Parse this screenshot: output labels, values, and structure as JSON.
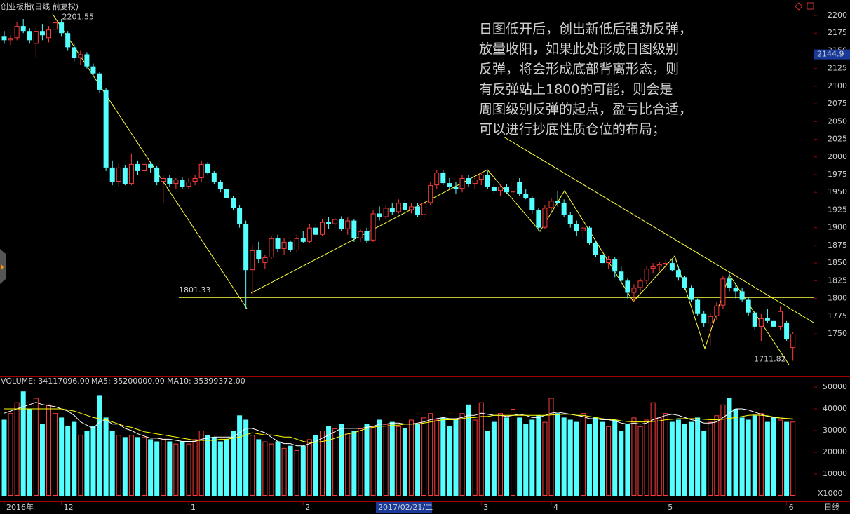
{
  "chart_data": [
    {
      "type": "candlestick",
      "title": "创业板指(日线 前复权)",
      "categories": [
        "2016年",
        null,
        null,
        null,
        null,
        null,
        null,
        null,
        null,
        "12",
        null,
        null,
        null,
        null,
        null,
        null,
        null,
        null,
        null,
        null,
        null,
        null,
        null,
        null,
        null,
        null,
        null,
        null,
        null,
        "1",
        null,
        null,
        null,
        null,
        null,
        null,
        null,
        null,
        null,
        null,
        null,
        null,
        null,
        null,
        null,
        null,
        null,
        "2",
        null,
        null,
        null,
        null,
        null,
        null,
        null,
        null,
        null,
        null,
        null,
        null,
        null,
        null,
        null,
        null,
        null,
        null,
        null,
        null,
        null,
        null,
        null,
        null,
        null,
        null,
        null,
        "3",
        null,
        null,
        null,
        null,
        null,
        null,
        null,
        null,
        null,
        null,
        "4",
        null,
        null,
        null,
        null,
        null,
        null,
        null,
        null,
        null,
        null,
        null,
        null,
        null,
        null,
        null,
        null,
        null,
        "5",
        null,
        null,
        null,
        null,
        null,
        null,
        null,
        null,
        null,
        null,
        null,
        null,
        null,
        null,
        null,
        null,
        null,
        null,
        "6",
        null
      ],
      "cursor_label": "2017/02/21/二",
      "open": [
        2170,
        2165,
        2168,
        2185,
        2178,
        2160,
        2178,
        2168,
        2180,
        2190,
        2175,
        2155,
        2140,
        2145,
        2128,
        2118,
        2095,
        1985,
        1965,
        1985,
        1962,
        1990,
        1980,
        1990,
        1985,
        1965,
        1970,
        1962,
        1968,
        1958,
        1965,
        1970,
        1990,
        1978,
        1965,
        1955,
        1942,
        1928,
        1905,
        1840,
        1868,
        1850,
        1858,
        1885,
        1870,
        1880,
        1868,
        1885,
        1880,
        1900,
        1890,
        1908,
        1905,
        1912,
        1898,
        1910,
        1885,
        1895,
        1882,
        1920,
        1915,
        1928,
        1922,
        1935,
        1925,
        1930,
        1918,
        1935,
        1960,
        1978,
        1963,
        1958,
        1955,
        1970,
        1962,
        1968,
        1975,
        1958,
        1952,
        1958,
        1950,
        1965,
        1948,
        1942,
        1925,
        1900,
        1928,
        1938,
        1935,
        1918,
        1905,
        1895,
        1900,
        1878,
        1862,
        1850,
        1855,
        1838,
        1825,
        1808,
        1815,
        1825,
        1842,
        1845,
        1848,
        1850,
        1840,
        1830,
        1815,
        1798,
        1778,
        1765,
        1775,
        1790,
        1828,
        1815,
        1810,
        1798,
        1780,
        1760,
        1772,
        1768,
        1760,
        1765,
        1730
      ],
      "high": [
        2178,
        2172,
        2190,
        2195,
        2182,
        2185,
        2188,
        2185,
        2201.55,
        2195,
        2178,
        2160,
        2150,
        2148,
        2132,
        2120,
        2098,
        1995,
        1990,
        1988,
        2005,
        1995,
        1992,
        1993,
        1987,
        1975,
        1975,
        1970,
        1972,
        1970,
        1975,
        1995,
        1993,
        1980,
        1968,
        1958,
        1945,
        1932,
        1910,
        1875,
        1880,
        1862,
        1888,
        1890,
        1885,
        1882,
        1890,
        1895,
        1905,
        1905,
        1912,
        1915,
        1915,
        1916,
        1915,
        1912,
        1898,
        1900,
        1925,
        1930,
        1932,
        1935,
        1940,
        1940,
        1935,
        1935,
        1940,
        1965,
        1982,
        1982,
        1970,
        1965,
        1975,
        1975,
        1972,
        1978,
        1980,
        1962,
        1962,
        1962,
        1970,
        1970,
        1955,
        1945,
        1928,
        1932,
        1942,
        1952,
        1940,
        1922,
        1910,
        1905,
        1902,
        1882,
        1865,
        1860,
        1858,
        1845,
        1828,
        1820,
        1828,
        1845,
        1850,
        1852,
        1855,
        1855,
        1845,
        1832,
        1818,
        1800,
        1782,
        1780,
        1795,
        1832,
        1835,
        1822,
        1815,
        1802,
        1782,
        1778,
        1785,
        1772,
        1788,
        1768,
        1752
      ],
      "low": [
        2160,
        2158,
        2165,
        2175,
        2160,
        2140,
        2165,
        2162,
        2175,
        2170,
        2150,
        2135,
        2130,
        2125,
        2115,
        2090,
        1980,
        1960,
        1958,
        1960,
        1960,
        1975,
        1975,
        1978,
        1960,
        1935,
        1958,
        1955,
        1955,
        1955,
        1960,
        1965,
        1975,
        1962,
        1950,
        1940,
        1925,
        1900,
        1785,
        1805,
        1850,
        1842,
        1855,
        1865,
        1862,
        1865,
        1865,
        1878,
        1878,
        1885,
        1888,
        1898,
        1900,
        1895,
        1890,
        1880,
        1880,
        1878,
        1880,
        1910,
        1912,
        1918,
        1920,
        1922,
        1920,
        1915,
        1912,
        1932,
        1955,
        1960,
        1955,
        1948,
        1950,
        1958,
        1955,
        1960,
        1955,
        1948,
        1945,
        1948,
        1945,
        1945,
        1940,
        1920,
        1895,
        1898,
        1922,
        1930,
        1915,
        1900,
        1888,
        1885,
        1875,
        1858,
        1845,
        1842,
        1830,
        1820,
        1800,
        1795,
        1810,
        1820,
        1835,
        1838,
        1840,
        1838,
        1825,
        1812,
        1795,
        1775,
        1760,
        1733,
        1770,
        1785,
        1810,
        1800,
        1795,
        1775,
        1755,
        1740,
        1765,
        1755,
        1755,
        1740,
        1711.82
      ],
      "close": [
        2165,
        2168,
        2185,
        2178,
        2165,
        2178,
        2172,
        2180,
        2190,
        2175,
        2155,
        2140,
        2145,
        2128,
        2118,
        2095,
        1985,
        1965,
        1985,
        1962,
        1990,
        1980,
        1990,
        1985,
        1965,
        1970,
        1962,
        1968,
        1958,
        1965,
        1970,
        1990,
        1978,
        1965,
        1955,
        1942,
        1928,
        1905,
        1840,
        1868,
        1855,
        1858,
        1885,
        1870,
        1880,
        1868,
        1885,
        1880,
        1900,
        1890,
        1908,
        1905,
        1912,
        1898,
        1910,
        1885,
        1895,
        1882,
        1920,
        1915,
        1928,
        1922,
        1935,
        1925,
        1930,
        1918,
        1935,
        1960,
        1978,
        1963,
        1958,
        1955,
        1970,
        1962,
        1968,
        1975,
        1958,
        1952,
        1958,
        1950,
        1965,
        1948,
        1942,
        1925,
        1900,
        1928,
        1938,
        1935,
        1918,
        1905,
        1895,
        1900,
        1878,
        1862,
        1850,
        1855,
        1838,
        1825,
        1808,
        1815,
        1825,
        1842,
        1845,
        1848,
        1850,
        1840,
        1830,
        1815,
        1798,
        1778,
        1765,
        1775,
        1790,
        1828,
        1815,
        1810,
        1798,
        1780,
        1760,
        1772,
        1768,
        1760,
        1782,
        1742,
        1750
      ],
      "up_color": "#ff3c3c",
      "down_color": "#54ffff",
      "ylim": [
        1691.5,
        2221.8
      ],
      "yticks": [
        1750,
        1775,
        1800,
        1825,
        1850,
        1875,
        1900,
        1925,
        1950,
        1975,
        2000,
        2025,
        2050,
        2075,
        2100,
        2125,
        2150,
        2175,
        2200
      ],
      "price_marker": 2144.9,
      "high_label": 2201.55,
      "low_label": 1711.82,
      "hline": 1801.33,
      "annotation": [
        "日图低开后，创出新低后强劲反弹，",
        "放量收阳，如果此处形成日图级别",
        "反弹，将会形成底部背离形态，则",
        "有反弹站上1800的可能，则会是",
        "周图级别反弹的起点，盈亏比合适，",
        "可以进行抄底性质仓位的布局；"
      ],
      "period_label": "日线"
    },
    {
      "type": "volume",
      "header": [
        "VOLUME: 34117096.00",
        "MA5: 35200000.00",
        "MA10: 35399372.00"
      ],
      "volume": [
        35000,
        38000,
        43000,
        48000,
        40000,
        45000,
        33000,
        42000,
        38000,
        36000,
        32000,
        34000,
        28000,
        30000,
        32000,
        46000,
        36000,
        30000,
        28000,
        27000,
        28000,
        27000,
        27000,
        26000,
        25000,
        26000,
        25000,
        24000,
        25000,
        24000,
        26000,
        30000,
        28000,
        27000,
        25000,
        26000,
        30000,
        37000,
        35000,
        28000,
        26000,
        25000,
        24000,
        25000,
        22000,
        23000,
        21000,
        23000,
        26000,
        28000,
        30000,
        32000,
        31000,
        33000,
        29000,
        30000,
        31000,
        33000,
        32000,
        35000,
        33000,
        34000,
        32000,
        31000,
        35000,
        33000,
        36000,
        38000,
        35000,
        36000,
        32000,
        35000,
        38000,
        42000,
        35000,
        43000,
        30000,
        34000,
        38000,
        36000,
        40000,
        36000,
        33000,
        35000,
        37000,
        34000,
        45000,
        38000,
        36000,
        35000,
        34000,
        38000,
        33000,
        36000,
        34000,
        32000,
        35000,
        30000,
        33000,
        36000,
        32000,
        35000,
        43000,
        36000,
        38000,
        34000,
        35000,
        33000,
        34000,
        36000,
        30000,
        34000,
        37000,
        42000,
        45000,
        40000,
        36000,
        35000,
        37000,
        38000,
        34000,
        36000,
        35000,
        34000,
        34117.096
      ],
      "ma5": [
        38000,
        39000,
        40000,
        41000,
        42000,
        43000,
        42000,
        41500,
        41000,
        40000,
        39000,
        37000,
        34000,
        32500,
        31000,
        34000,
        35000,
        33000,
        33000,
        31000,
        30000,
        28500,
        27500,
        26500,
        26500,
        26000,
        26000,
        25500,
        25000,
        25000,
        25000,
        26000,
        26500,
        27000,
        27000,
        27000,
        27000,
        29000,
        31000,
        31000,
        30000,
        29000,
        27000,
        25000,
        24000,
        24000,
        23000,
        23000,
        24000,
        25000,
        26500,
        28000,
        29500,
        31000,
        31000,
        31000,
        31000,
        31500,
        32000,
        33000,
        33000,
        33500,
        33500,
        33000,
        33000,
        33500,
        34000,
        35000,
        35500,
        36000,
        35500,
        35500,
        36000,
        37000,
        37000,
        38000,
        37500,
        37000,
        37000,
        36500,
        37000,
        37500,
        37000,
        36000,
        36000,
        37000,
        38000,
        38500,
        38000,
        37500,
        37000,
        36500,
        35500,
        35500,
        35000,
        35000,
        34500,
        33500,
        33000,
        33500,
        33000,
        33500,
        35000,
        36000,
        37000,
        37500,
        37000,
        36000,
        35000,
        34500,
        33500,
        33500,
        34000,
        36000,
        38000,
        40000,
        40000,
        39500,
        38500,
        37500,
        36500,
        36000,
        35800,
        35500,
        35200
      ],
      "ma10": [
        40000,
        40000,
        40000,
        40000,
        40000,
        40000,
        40000,
        40000,
        40000,
        40000,
        39500,
        39000,
        38000,
        37000,
        36000,
        35500,
        35000,
        34000,
        33000,
        32000,
        31500,
        30500,
        29500,
        29000,
        28500,
        28000,
        27500,
        27000,
        26500,
        26000,
        25500,
        25500,
        25500,
        25500,
        26000,
        26000,
        26500,
        27000,
        28000,
        29000,
        28500,
        28000,
        28000,
        27500,
        27000,
        27000,
        26000,
        25000,
        24500,
        24500,
        25000,
        25500,
        26500,
        27500,
        28500,
        29000,
        30000,
        31000,
        31500,
        32000,
        32000,
        32500,
        32500,
        33000,
        33000,
        33000,
        33500,
        34000,
        34500,
        35000,
        35000,
        35000,
        35500,
        36000,
        36000,
        36500,
        36500,
        37000,
        37000,
        37000,
        37000,
        37000,
        37000,
        37000,
        37000,
        37000,
        37200,
        37400,
        37500,
        37500,
        37000,
        37000,
        36500,
        36000,
        35500,
        35200,
        35000,
        34500,
        34200,
        34000,
        34000,
        34000,
        34200,
        34500,
        35000,
        35200,
        35500,
        35500,
        35500,
        35500,
        35200,
        35000,
        35000,
        35200,
        35600,
        36000,
        36500,
        37000,
        37200,
        37000,
        36800,
        36200,
        35800,
        35600,
        35399.372
      ],
      "ma5_color": "#ffffff",
      "ma10_color": "#ffff00",
      "ylim": [
        0,
        54840
      ],
      "yticks": [
        10000,
        20000,
        30000,
        40000,
        50000
      ],
      "unit_label": "X1000"
    }
  ]
}
